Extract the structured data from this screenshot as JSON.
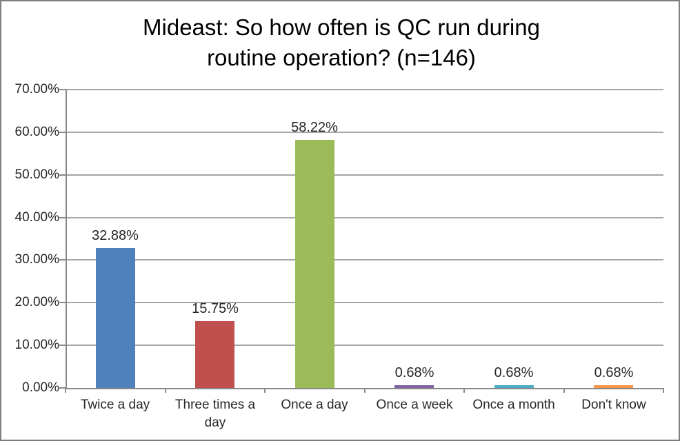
{
  "chart_data": {
    "type": "bar",
    "title": "Mideast: So how often is QC run during routine operation? (n=146)",
    "title_lines": [
      "Mideast: So how often is QC run during",
      "routine operation? (n=146)"
    ],
    "categories": [
      "Twice a day",
      "Three times a day",
      "Once a day",
      "Once a week",
      "Once a month",
      "Don't know"
    ],
    "values": [
      32.88,
      15.75,
      58.22,
      0.68,
      0.68,
      0.68
    ],
    "data_labels": [
      "32.88%",
      "15.75%",
      "58.22%",
      "0.68%",
      "0.68%",
      "0.68%"
    ],
    "bar_colors": [
      "#4F81BD",
      "#C0504D",
      "#9BBB59",
      "#8064A2",
      "#4BACC6",
      "#F79646"
    ],
    "xlabel": "",
    "ylabel": "",
    "ylim": [
      0,
      70
    ],
    "ytick_step": 10,
    "ytick_labels": [
      "0.00%",
      "10.00%",
      "20.00%",
      "30.00%",
      "40.00%",
      "50.00%",
      "60.00%",
      "70.00%"
    ],
    "grid": true,
    "legend_position": "none"
  },
  "colors": {
    "gridline": "#A5A5A5",
    "axis": "#898989",
    "frame_border": "#7F7F7F",
    "background": "#FFFFFF",
    "label_text": "#262626",
    "title_text": "#000000"
  }
}
